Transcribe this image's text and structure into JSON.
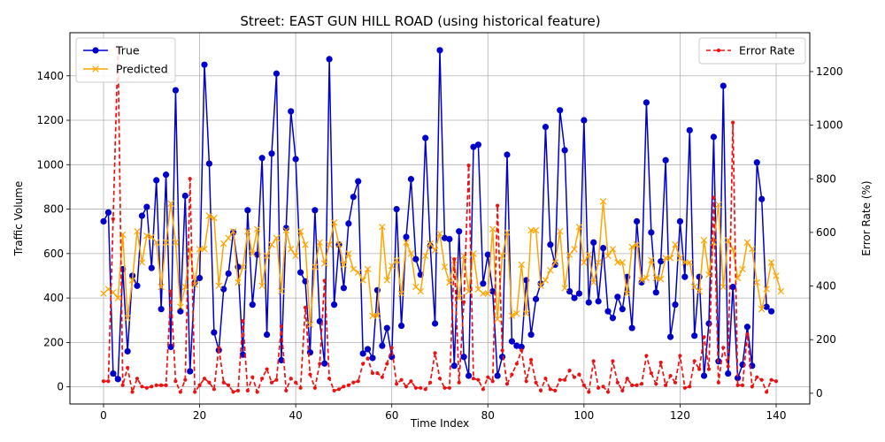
{
  "chart_data": {
    "type": "line",
    "title": "Street: EAST GUN HILL ROAD (using historical feature)",
    "xlabel": "Time Index",
    "ylabel": "Traffic Volume",
    "y2label": "Error Rate (%)",
    "xlim": [
      -7,
      147
    ],
    "ylim": [
      -77,
      1594
    ],
    "y2lim": [
      -40,
      1345
    ],
    "x_ticks": [
      0,
      20,
      40,
      60,
      80,
      100,
      120,
      140
    ],
    "y_ticks": [
      0,
      200,
      400,
      600,
      800,
      1000,
      1200,
      1400
    ],
    "y2_ticks": [
      0,
      200,
      400,
      600,
      800,
      1000,
      1200
    ],
    "grid": true,
    "legend_left": {
      "placement": "upper-left",
      "entries": [
        {
          "label": "True",
          "color": "#0000cc"
        },
        {
          "label": "Predicted",
          "color": "#ffa500"
        }
      ]
    },
    "legend_right": {
      "placement": "upper-right",
      "entries": [
        {
          "label": "Error Rate",
          "color": "#ee1111"
        }
      ]
    },
    "series": [
      {
        "name": "True",
        "axis": "left",
        "color": "#0000cc",
        "marker": "circle",
        "values": [
          745,
          785,
          60,
          35,
          530,
          160,
          500,
          455,
          770,
          810,
          535,
          930,
          350,
          955,
          180,
          1335,
          340,
          860,
          70,
          470,
          490,
          1450,
          1005,
          245,
          165,
          440,
          510,
          695,
          540,
          145,
          795,
          370,
          595,
          1030,
          235,
          1050,
          1410,
          120,
          715,
          1240,
          1025,
          515,
          475,
          155,
          795,
          295,
          105,
          1475,
          370,
          640,
          445,
          735,
          855,
          925,
          150,
          170,
          130,
          435,
          185,
          265,
          135,
          800,
          275,
          675,
          935,
          575,
          505,
          1120,
          635,
          285,
          1515,
          670,
          665,
          95,
          700,
          135,
          50,
          1080,
          1090,
          465,
          595,
          430,
          50,
          135,
          1045,
          205,
          185,
          180,
          480,
          235,
          395,
          465,
          1170,
          640,
          550,
          1245,
          1065,
          430,
          400,
          420,
          1200,
          380,
          650,
          385,
          625,
          340,
          310,
          405,
          350,
          495,
          265,
          745,
          470,
          1280,
          695,
          425,
          565,
          1020,
          225,
          370,
          745,
          495,
          1155,
          230,
          495,
          50,
          285,
          1125,
          115,
          1355,
          60,
          450,
          40,
          100,
          270,
          95,
          1010,
          845,
          360,
          340
        ]
      },
      {
        "name": "Predicted",
        "axis": "left",
        "color": "#ffa500",
        "marker": "x",
        "values": [
          420,
          440,
          425,
          400,
          685,
          310,
          480,
          700,
          560,
          680,
          675,
          650,
          450,
          650,
          825,
          650,
          360,
          450,
          620,
          460,
          620,
          620,
          770,
          760,
          455,
          645,
          670,
          700,
          470,
          540,
          700,
          600,
          710,
          455,
          590,
          640,
          670,
          430,
          705,
          620,
          590,
          700,
          640,
          280,
          540,
          650,
          555,
          640,
          740,
          640,
          550,
          600,
          530,
          515,
          480,
          530,
          320,
          320,
          720,
          480,
          545,
          570,
          420,
          650,
          600,
          450,
          430,
          590,
          645,
          615,
          690,
          540,
          470,
          570,
          400,
          590,
          430,
          600,
          440,
          420,
          420,
          710,
          305,
          590,
          695,
          320,
          330,
          550,
          330,
          705,
          705,
          455,
          480,
          525,
          560,
          700,
          445,
          595,
          620,
          720,
          560,
          595,
          470,
          560,
          835,
          590,
          620,
          560,
          560,
          420,
          630,
          640,
          480,
          490,
          570,
          490,
          485,
          580,
          580,
          640,
          580,
          560,
          560,
          450,
          430,
          660,
          505,
          650,
          820,
          450,
          660,
          620,
          490,
          530,
          650,
          620,
          470,
          350,
          440,
          560,
          500,
          430
        ]
      },
      {
        "name": "Error Rate",
        "axis": "right",
        "color": "#ee1111",
        "marker": "dot",
        "values": [
          45,
          45,
          650,
          1290,
          30,
          95,
          5,
          55,
          25,
          20,
          25,
          30,
          30,
          30,
          380,
          45,
          5,
          50,
          800,
          5,
          30,
          55,
          40,
          15,
          170,
          40,
          30,
          5,
          10,
          270,
          10,
          60,
          5,
          55,
          90,
          40,
          50,
          250,
          10,
          55,
          40,
          20,
          320,
          70,
          20,
          110,
          420,
          55,
          10,
          15,
          25,
          30,
          40,
          45,
          110,
          130,
          75,
          75,
          60,
          110,
          170,
          35,
          50,
          25,
          45,
          20,
          20,
          15,
          40,
          150,
          55,
          20,
          20,
          500,
          40,
          340,
          850,
          55,
          50,
          15,
          60,
          45,
          700,
          160,
          35,
          70,
          110,
          160,
          45,
          125,
          40,
          10,
          55,
          15,
          10,
          50,
          50,
          85,
          60,
          70,
          30,
          5,
          120,
          20,
          25,
          5,
          120,
          40,
          10,
          55,
          30,
          30,
          35,
          140,
          75,
          35,
          115,
          30,
          65,
          40,
          140,
          20,
          25,
          120,
          90,
          210,
          90,
          730,
          40,
          170,
          100,
          1010,
          30,
          30,
          220,
          25,
          60,
          50,
          5,
          50,
          45
        ]
      }
    ]
  }
}
